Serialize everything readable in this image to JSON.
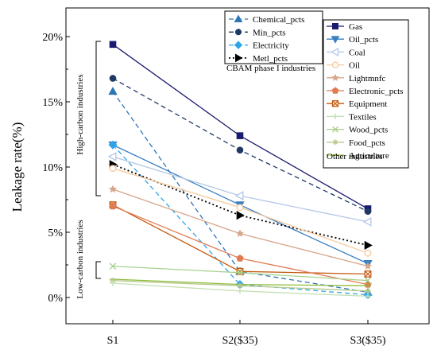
{
  "chart_data": {
    "type": "line",
    "categories": [
      "S1",
      "S2($35)",
      "S3($35)"
    ],
    "ylabel": "Leakage rate(%)",
    "ylim": [
      -1.5,
      21.5
    ],
    "yticks": [
      0,
      5,
      10,
      15,
      20
    ],
    "ytick_labels": [
      "0%",
      "5%",
      "10%",
      "15%",
      "20%"
    ],
    "grid": false,
    "annotations": {
      "high_carbon": "High-carbon industries",
      "low_carbon": "Low-carbon industries"
    },
    "legend_cbam": {
      "caption": "CBAM phase I industries",
      "placement": "top-center",
      "series": [
        "Chemical_pcts",
        "Min_pcts",
        "Electricity",
        "Metl_pcts"
      ]
    },
    "legend_other": {
      "caption": "Other industries",
      "placement": "top-right",
      "series": [
        "Gas",
        "Oil_pcts",
        "Coal",
        "Oil",
        "Lightmnfc",
        "Electronic_pcts",
        "Equipment",
        "Textiles",
        "Wood_pcts",
        "Food_pcts",
        "Agriculture"
      ]
    },
    "series": [
      {
        "name": "Gas",
        "values": [
          19.4,
          12.4,
          6.8
        ],
        "color": "#1a1a6e",
        "dash": "solid",
        "marker": "square-filled"
      },
      {
        "name": "Min_pcts",
        "values": [
          16.8,
          11.3,
          6.6
        ],
        "color": "#1f3864",
        "dash": "dashed",
        "marker": "circle-filled"
      },
      {
        "name": "Chemical_pcts",
        "values": [
          15.8,
          2.0,
          0.4
        ],
        "color": "#2e75b6",
        "dash": "dashed",
        "marker": "triangle-filled"
      },
      {
        "name": "Oil_pcts",
        "values": [
          11.7,
          7.1,
          2.6
        ],
        "color": "#3a7fc2",
        "dash": "solid",
        "marker": "triangle-down-filled"
      },
      {
        "name": "Electricity",
        "values": [
          11.7,
          1.0,
          0.2
        ],
        "color": "#2fa5e8",
        "dash": "dashed",
        "marker": "diamond-filled"
      },
      {
        "name": "Coal",
        "values": [
          10.8,
          7.8,
          5.8
        ],
        "color": "#b4c7e7",
        "dash": "solid",
        "marker": "triangle-left-open"
      },
      {
        "name": "Metl_pcts",
        "values": [
          10.2,
          6.3,
          4.0
        ],
        "color": "#000000",
        "dash": "dotted",
        "marker": "triangle-right-filled"
      },
      {
        "name": "Oil",
        "values": [
          9.9,
          6.9,
          3.4
        ],
        "color": "#f4c89a",
        "dash": "solid",
        "marker": "circle-open"
      },
      {
        "name": "Lightmnfc",
        "values": [
          8.3,
          4.9,
          2.4
        ],
        "color": "#d6a58a",
        "dash": "solid",
        "marker": "star"
      },
      {
        "name": "Equipment",
        "values": [
          7.1,
          2.0,
          1.8
        ],
        "color": "#c55a11",
        "dash": "solid",
        "marker": "square-x"
      },
      {
        "name": "Electronic_pcts",
        "values": [
          7.0,
          3.0,
          1.0
        ],
        "color": "#e07b53",
        "dash": "solid",
        "marker": "pentagon-filled"
      },
      {
        "name": "Wood_pcts",
        "values": [
          2.4,
          1.9,
          1.3
        ],
        "color": "#a9d18e",
        "dash": "solid",
        "marker": "x"
      },
      {
        "name": "Agriculture",
        "values": [
          1.4,
          1.0,
          0.9
        ],
        "color": "#8fbc3a",
        "dash": "solid",
        "marker": "dash"
      },
      {
        "name": "Food_pcts",
        "values": [
          1.3,
          0.9,
          0.5
        ],
        "color": "#b6c98d",
        "dash": "solid",
        "marker": "asterisk"
      },
      {
        "name": "Textiles",
        "values": [
          1.1,
          0.5,
          0.1
        ],
        "color": "#c5e0b4",
        "dash": "solid",
        "marker": "plus"
      }
    ]
  }
}
